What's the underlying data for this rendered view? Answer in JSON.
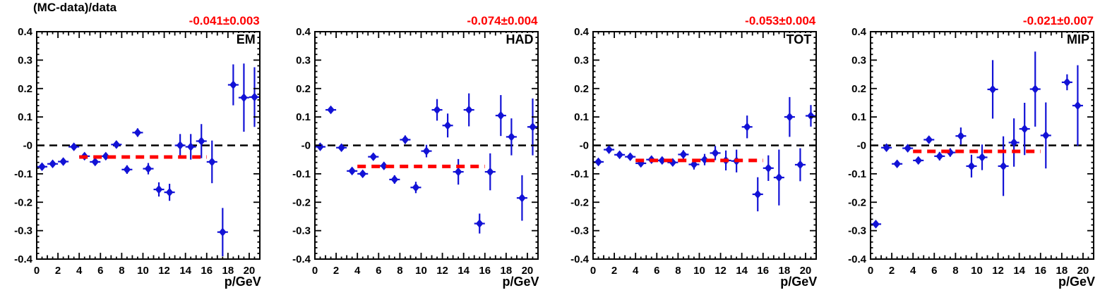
{
  "figure_title": "(MC-data)/data",
  "axes": {
    "xlabel": "p/GeV",
    "xmin": 0,
    "xmax": 21,
    "ymin": -0.4,
    "ymax": 0.4,
    "x_tick_labels": [
      0,
      2,
      4,
      6,
      8,
      10,
      12,
      14,
      16,
      18,
      20
    ],
    "x_minor_step": 0.5,
    "y_tick_step": 0.1,
    "y_minor_step": 0.02,
    "y_tick_labels": [
      "0.4",
      "0.3",
      "0.2",
      "0.1",
      "-0",
      "-0.1",
      "-0.2",
      "-0.3",
      "-0.4"
    ],
    "grid": false
  },
  "colors": {
    "marker": "#1212d6",
    "fit_line": "#ff0000",
    "fit_text": "#ff0000",
    "zero_line": "#000000",
    "frame": "#000000"
  },
  "chart_data": [
    {
      "type": "scatter",
      "label": "EM",
      "fit_label": "-0.041±0.003",
      "fit_value": -0.041,
      "fit_range": [
        4,
        16
      ],
      "x_half_width": 0.5,
      "points": [
        [
          0.5,
          -0.075,
          0.01
        ],
        [
          1.5,
          -0.065,
          0.008
        ],
        [
          2.5,
          -0.057,
          0.008
        ],
        [
          3.5,
          -0.005,
          0.008
        ],
        [
          4.5,
          -0.038,
          0.01
        ],
        [
          5.5,
          -0.058,
          0.01
        ],
        [
          6.5,
          -0.038,
          0.01
        ],
        [
          7.5,
          0.003,
          0.012
        ],
        [
          8.5,
          -0.085,
          0.015
        ],
        [
          9.5,
          0.045,
          0.015
        ],
        [
          10.5,
          -0.082,
          0.02
        ],
        [
          11.5,
          -0.155,
          0.025
        ],
        [
          12.5,
          -0.165,
          0.03
        ],
        [
          13.5,
          0.0,
          0.04
        ],
        [
          14.5,
          -0.005,
          0.045
        ],
        [
          15.5,
          0.015,
          0.06
        ],
        [
          16.5,
          -0.058,
          0.075
        ],
        [
          17.5,
          -0.305,
          0.085
        ],
        [
          18.5,
          0.213,
          0.072
        ],
        [
          19.5,
          0.168,
          0.12
        ],
        [
          20.5,
          0.17,
          0.105
        ]
      ]
    },
    {
      "type": "scatter",
      "label": "HAD",
      "fit_label": "-0.074±0.004",
      "fit_value": -0.074,
      "fit_range": [
        4,
        16
      ],
      "x_half_width": 0.5,
      "points": [
        [
          0.5,
          -0.005,
          0.01
        ],
        [
          1.5,
          0.125,
          0.01
        ],
        [
          2.5,
          -0.008,
          0.01
        ],
        [
          3.5,
          -0.09,
          0.01
        ],
        [
          4.5,
          -0.1,
          0.01
        ],
        [
          5.5,
          -0.04,
          0.012
        ],
        [
          6.5,
          -0.072,
          0.012
        ],
        [
          7.5,
          -0.12,
          0.015
        ],
        [
          8.5,
          0.02,
          0.015
        ],
        [
          9.5,
          -0.148,
          0.02
        ],
        [
          10.5,
          -0.02,
          0.022
        ],
        [
          11.5,
          0.125,
          0.038
        ],
        [
          12.5,
          0.07,
          0.042
        ],
        [
          13.5,
          -0.093,
          0.045
        ],
        [
          14.5,
          0.125,
          0.058
        ],
        [
          15.5,
          -0.275,
          0.035
        ],
        [
          16.5,
          -0.093,
          0.065
        ],
        [
          17.5,
          0.105,
          0.072
        ],
        [
          18.5,
          0.03,
          0.065
        ],
        [
          19.5,
          -0.185,
          0.08
        ],
        [
          20.5,
          0.065,
          0.1
        ]
      ]
    },
    {
      "type": "scatter",
      "label": "TOT",
      "fit_label": "-0.053±0.004",
      "fit_value": -0.053,
      "fit_range": [
        4,
        16
      ],
      "x_half_width": 0.5,
      "points": [
        [
          0.5,
          -0.058,
          0.012
        ],
        [
          1.5,
          -0.015,
          0.008
        ],
        [
          2.5,
          -0.033,
          0.008
        ],
        [
          3.5,
          -0.04,
          0.008
        ],
        [
          4.5,
          -0.063,
          0.01
        ],
        [
          5.5,
          -0.05,
          0.01
        ],
        [
          6.5,
          -0.053,
          0.01
        ],
        [
          7.5,
          -0.06,
          0.012
        ],
        [
          8.5,
          -0.032,
          0.015
        ],
        [
          9.5,
          -0.067,
          0.018
        ],
        [
          10.5,
          -0.05,
          0.02
        ],
        [
          11.5,
          -0.027,
          0.025
        ],
        [
          12.5,
          -0.053,
          0.035
        ],
        [
          13.5,
          -0.055,
          0.04
        ],
        [
          14.5,
          0.065,
          0.04
        ],
        [
          15.5,
          -0.172,
          0.06
        ],
        [
          16.5,
          -0.08,
          0.045
        ],
        [
          17.5,
          -0.113,
          0.098
        ],
        [
          18.5,
          0.1,
          0.07
        ],
        [
          19.5,
          -0.068,
          0.058
        ],
        [
          20.5,
          0.104,
          0.038
        ]
      ]
    },
    {
      "type": "scatter",
      "label": "MIP",
      "fit_label": "-0.021±0.007",
      "fit_value": -0.021,
      "fit_range": [
        4,
        16
      ],
      "x_half_width": 0.5,
      "points": [
        [
          0.5,
          -0.277,
          0.012
        ],
        [
          1.5,
          -0.008,
          0.008
        ],
        [
          2.5,
          -0.065,
          0.01
        ],
        [
          3.5,
          -0.01,
          0.01
        ],
        [
          4.5,
          -0.053,
          0.012
        ],
        [
          5.5,
          0.02,
          0.012
        ],
        [
          6.5,
          -0.038,
          0.015
        ],
        [
          7.5,
          -0.025,
          0.015
        ],
        [
          8.5,
          0.033,
          0.03
        ],
        [
          9.5,
          -0.073,
          0.04
        ],
        [
          10.5,
          -0.042,
          0.045
        ],
        [
          11.5,
          0.197,
          0.103
        ],
        [
          12.5,
          -0.073,
          0.105
        ],
        [
          13.5,
          0.01,
          0.085
        ],
        [
          14.5,
          0.058,
          0.092
        ],
        [
          15.5,
          0.198,
          0.132
        ],
        [
          16.5,
          0.035,
          0.116
        ],
        [
          18.5,
          0.222,
          0.028
        ],
        [
          19.5,
          0.14,
          0.142
        ]
      ]
    }
  ]
}
